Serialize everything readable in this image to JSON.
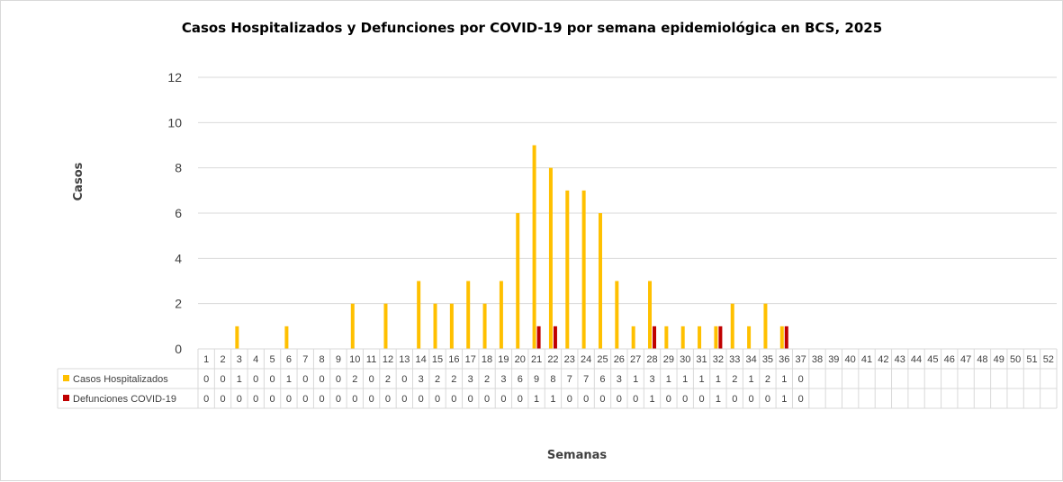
{
  "chart_data": {
    "type": "bar",
    "title": "Casos Hospitalizados y Defunciones por COVID-19 por semana epidemiológica en BCS, 2025",
    "xlabel": "Semanas",
    "ylabel": "Casos",
    "ylim": [
      0,
      12
    ],
    "yticks": [
      0,
      2,
      4,
      6,
      8,
      10,
      12
    ],
    "grid": true,
    "legend": "data-table",
    "categories": [
      "1",
      "2",
      "3",
      "4",
      "5",
      "6",
      "7",
      "8",
      "9",
      "10",
      "11",
      "12",
      "13",
      "14",
      "15",
      "16",
      "17",
      "18",
      "19",
      "20",
      "21",
      "22",
      "23",
      "24",
      "25",
      "26",
      "27",
      "28",
      "29",
      "30",
      "31",
      "32",
      "33",
      "34",
      "35",
      "36",
      "37",
      "38",
      "39",
      "40",
      "41",
      "42",
      "43",
      "44",
      "45",
      "46",
      "47",
      "48",
      "49",
      "50",
      "51",
      "52"
    ],
    "series": [
      {
        "name": "Casos Hospitalizados",
        "color": "#FFC000",
        "values": [
          0,
          0,
          1,
          0,
          0,
          1,
          0,
          0,
          0,
          2,
          0,
          2,
          0,
          3,
          2,
          2,
          3,
          2,
          3,
          6,
          9,
          8,
          7,
          7,
          6,
          3,
          1,
          3,
          1,
          1,
          1,
          1,
          2,
          1,
          2,
          1,
          0,
          null,
          null,
          null,
          null,
          null,
          null,
          null,
          null,
          null,
          null,
          null,
          null,
          null,
          null,
          null
        ]
      },
      {
        "name": "Defunciones COVID-19",
        "color": "#C00000",
        "values": [
          0,
          0,
          0,
          0,
          0,
          0,
          0,
          0,
          0,
          0,
          0,
          0,
          0,
          0,
          0,
          0,
          0,
          0,
          0,
          0,
          1,
          1,
          0,
          0,
          0,
          0,
          0,
          1,
          0,
          0,
          0,
          1,
          0,
          0,
          0,
          1,
          0,
          null,
          null,
          null,
          null,
          null,
          null,
          null,
          null,
          null,
          null,
          null,
          null,
          null,
          null,
          null
        ]
      }
    ]
  }
}
